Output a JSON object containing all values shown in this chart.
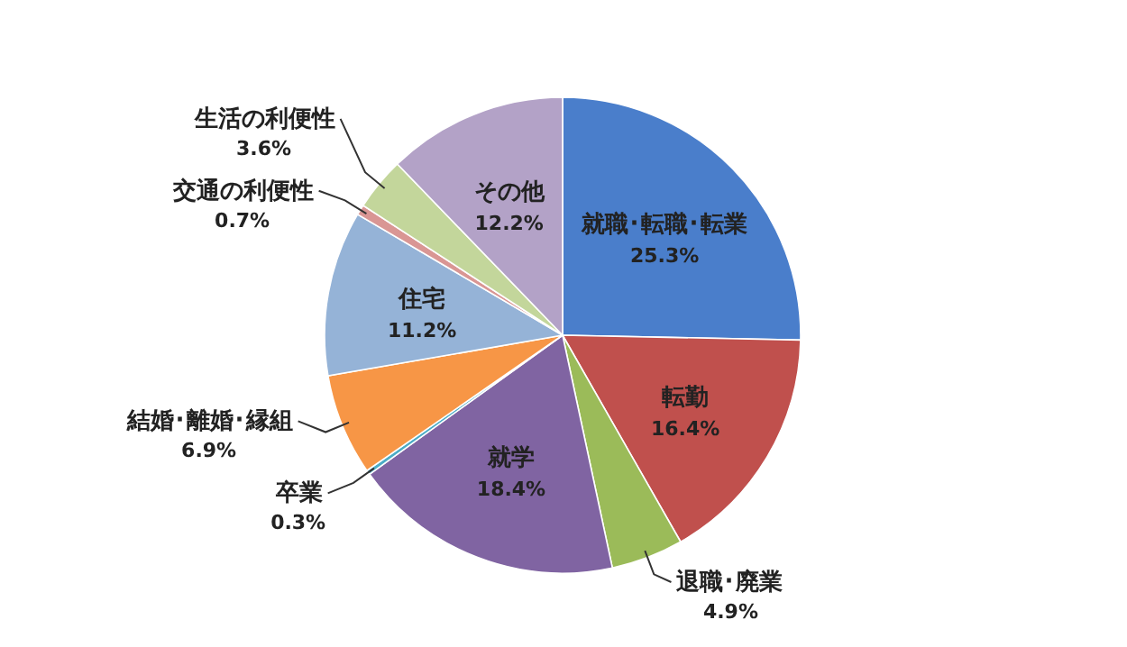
{
  "chart_data": {
    "type": "pie",
    "categories": [
      "就職･転職･転業",
      "転勤",
      "退職･廃業",
      "就学",
      "卒業",
      "結婚･離婚･縁組",
      "住宅",
      "交通の利便性",
      "生活の利便性",
      "その他"
    ],
    "values": [
      25.3,
      16.4,
      4.9,
      18.4,
      0.3,
      6.9,
      11.2,
      0.7,
      3.6,
      12.2
    ],
    "value_labels": [
      "25.3%",
      "16.4%",
      "4.9%",
      "18.4%",
      "0.3%",
      "6.9%",
      "11.2%",
      "0.7%",
      "3.6%",
      "12.2%"
    ],
    "colors": [
      "#4a7ecb",
      "#c0504d",
      "#9bbb59",
      "#8064a2",
      "#4bacc6",
      "#f79646",
      "#95b3d7",
      "#d99694",
      "#c3d69b",
      "#b3a2c7"
    ]
  }
}
